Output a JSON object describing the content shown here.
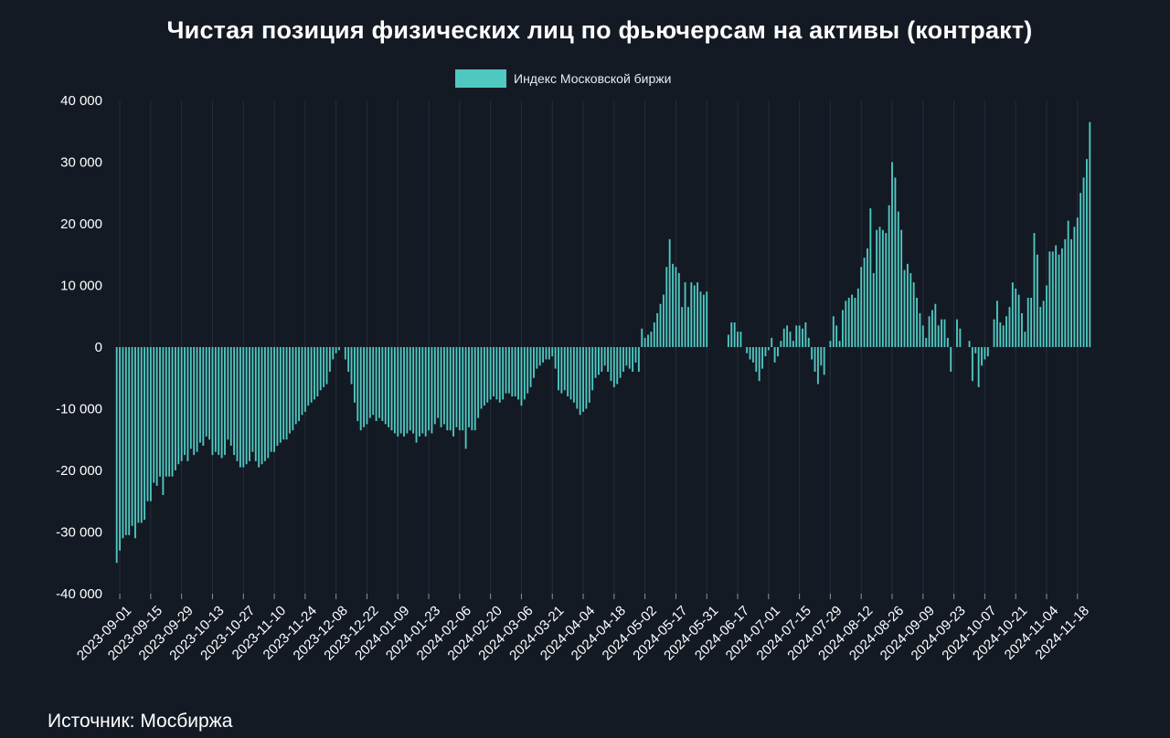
{
  "chart_data": {
    "type": "bar",
    "title": "Чистая позиция физических лиц по фьючерсам на активы  (контракт)",
    "xlabel": "",
    "ylabel": "",
    "ylim": [
      -40000,
      40000
    ],
    "yticks": [
      40000,
      30000,
      20000,
      10000,
      0,
      -10000,
      -20000,
      -30000,
      -40000
    ],
    "ytick_labels": [
      "40 000",
      "30 000",
      "20 000",
      "10 000",
      "0",
      "-10 000",
      "-20 000",
      "-30 000",
      "-40 000"
    ],
    "grid": "vertical",
    "legend_position": "top-center",
    "xtick_labels": [
      "2023-09-01",
      "2023-09-15",
      "2023-09-29",
      "2023-10-13",
      "2023-10-27",
      "2023-11-10",
      "2023-11-24",
      "2023-12-08",
      "2023-12-22",
      "2024-01-09",
      "2024-01-23",
      "2024-02-06",
      "2024-02-20",
      "2024-03-06",
      "2024-03-21",
      "2024-04-04",
      "2024-04-18",
      "2024-05-02",
      "2024-05-17",
      "2024-05-31",
      "2024-06-17",
      "2024-07-01",
      "2024-07-15",
      "2024-07-29",
      "2024-08-12",
      "2024-08-26",
      "2024-09-09",
      "2024-09-23",
      "2024-10-07",
      "2024-10-21",
      "2024-11-04",
      "2024-11-18"
    ],
    "xtick_start_index": 1,
    "xtick_step": 10,
    "series": [
      {
        "name": "Индекс Московской биржи",
        "color": "#4fc8c2",
        "values": [
          -35000,
          -33000,
          -31000,
          -30500,
          -30500,
          -29000,
          -31000,
          -28500,
          -28500,
          -28000,
          -25000,
          -25000,
          -22000,
          -22500,
          -21000,
          -24000,
          -21000,
          -21000,
          -21000,
          -20000,
          -19000,
          -18500,
          -17500,
          -18500,
          -16500,
          -17500,
          -17000,
          -15500,
          -16000,
          -14500,
          -15000,
          -17500,
          -17000,
          -17500,
          -18000,
          -17500,
          -15000,
          -16000,
          -17500,
          -18500,
          -19500,
          -19500,
          -19000,
          -18500,
          -17000,
          -18500,
          -19500,
          -19000,
          -18500,
          -18000,
          -17000,
          -17000,
          -16000,
          -15500,
          -15000,
          -15000,
          -14000,
          -13500,
          -12500,
          -12000,
          -11000,
          -10500,
          -9500,
          -9000,
          -8500,
          -8000,
          -7000,
          -6500,
          -6000,
          -4000,
          -2000,
          -1000,
          -500,
          0,
          -2000,
          -4000,
          -6000,
          -9000,
          -12000,
          -13500,
          -13000,
          -12500,
          -11500,
          -11000,
          -12000,
          -11500,
          -12000,
          -12500,
          -13000,
          -13500,
          -14000,
          -14500,
          -14000,
          -14500,
          -14000,
          -13500,
          -14000,
          -15500,
          -14500,
          -14000,
          -14500,
          -13500,
          -14000,
          -12500,
          -11500,
          -13000,
          -12500,
          -13500,
          -13500,
          -14500,
          -13000,
          -13500,
          -13500,
          -16500,
          -13000,
          -13500,
          -13500,
          -11500,
          -10000,
          -9500,
          -9000,
          -8500,
          -8000,
          -8500,
          -9000,
          -8500,
          -7500,
          -7500,
          -8000,
          -8000,
          -8500,
          -9500,
          -8500,
          -7500,
          -6500,
          -5000,
          -3500,
          -3000,
          -2500,
          -2000,
          -2000,
          -1500,
          -3500,
          -7000,
          -7500,
          -7000,
          -8000,
          -8500,
          -9000,
          -10000,
          -11000,
          -10500,
          -10000,
          -9000,
          -7000,
          -5000,
          -4500,
          -4000,
          -3000,
          -4000,
          -5500,
          -6500,
          -6000,
          -5000,
          -4000,
          -3000,
          -3500,
          -4000,
          -2500,
          -4000,
          3000,
          1500,
          2000,
          2500,
          4000,
          5500,
          7000,
          8500,
          13000,
          17500,
          13500,
          13000,
          12000,
          6500,
          10500,
          6500,
          10500,
          10000,
          10500,
          9000,
          8500,
          9000,
          0,
          0,
          0,
          0,
          0,
          0,
          2000,
          4000,
          4000,
          2500,
          2500,
          0,
          -1000,
          -2000,
          -2500,
          -4000,
          -5500,
          -3500,
          -1500,
          -500,
          1500,
          -2500,
          -1500,
          1000,
          3000,
          3500,
          2500,
          1000,
          3500,
          3500,
          3000,
          4000,
          1500,
          -2000,
          -4000,
          -6000,
          -3000,
          -4500,
          0,
          1000,
          5000,
          3500,
          1000,
          6000,
          7500,
          8000,
          8500,
          8000,
          9500,
          13000,
          14500,
          16000,
          22500,
          12000,
          19000,
          19500,
          19000,
          18500,
          23000,
          30000,
          27500,
          22000,
          19000,
          12500,
          13500,
          12000,
          10500,
          8000,
          5500,
          3500,
          1500,
          5000,
          6000,
          7000,
          3500,
          4500,
          4500,
          1500,
          -4000,
          0,
          4500,
          3000,
          0,
          0,
          1000,
          -5500,
          -1000,
          -6500,
          -3000,
          -2000,
          -1500,
          0,
          4500,
          7500,
          4000,
          3500,
          5000,
          6500,
          10500,
          9500,
          8500,
          5500,
          2500,
          8000,
          8000,
          18500,
          15000,
          6500,
          7500,
          10000,
          15500,
          15500,
          16500,
          15000,
          16000,
          17500,
          20500,
          17500,
          19500,
          21000,
          25000,
          27500,
          30500,
          36500
        ]
      }
    ]
  },
  "source_label": "Источник: Мосбиржа"
}
